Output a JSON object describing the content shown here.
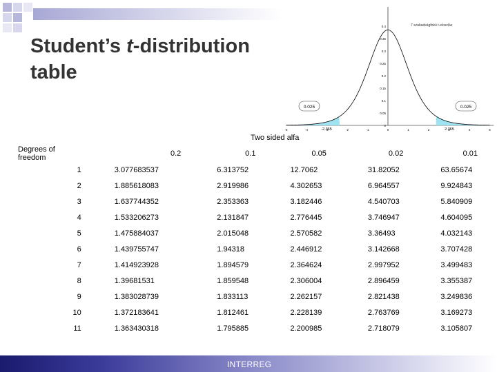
{
  "slide": {
    "title_line1_a": "Student’s ",
    "title_line1_b": "t",
    "title_line1_c": "-distribution",
    "title_line2": "table",
    "footer": "INTERREG"
  },
  "figure": {
    "legend": "7 szabadságfokú t-eloszlás",
    "left_tail_label": "0.025",
    "right_tail_label": "0.025",
    "left_crit": "-2.365",
    "right_crit": "2.365",
    "y_ticks": [
      "0.4",
      "0.35",
      "0.3",
      "0.25",
      "0.2",
      "0.15",
      "0.1",
      "0.05",
      "0"
    ],
    "x_ticks": [
      "-5",
      "-4",
      "-3",
      "-2",
      "-1",
      "0",
      "1",
      "2",
      "3",
      "4",
      "5"
    ],
    "colors": {
      "fill": "#9fe3f0",
      "curve": "#000000",
      "tail_box": "#ffffff"
    }
  },
  "table": {
    "caption": "Two sided alfa",
    "header": [
      "Degrees of freedom",
      "0.2",
      "0.1",
      "0.05",
      "0.02",
      "0.01"
    ],
    "rows": [
      [
        "1",
        "3.077683537",
        "6.313752",
        "12.7062",
        "31.82052",
        "63.65674"
      ],
      [
        "2",
        "1.885618083",
        "2.919986",
        "4.302653",
        "6.964557",
        "9.924843"
      ],
      [
        "3",
        "1.637744352",
        "2.353363",
        "3.182446",
        "4.540703",
        "5.840909"
      ],
      [
        "4",
        "1.533206273",
        "2.131847",
        "2.776445",
        "3.746947",
        "4.604095"
      ],
      [
        "5",
        "1.475884037",
        "2.015048",
        "2.570582",
        "3.36493",
        "4.032143"
      ],
      [
        "6",
        "1.439755747",
        "1.94318",
        "2.446912",
        "3.142668",
        "3.707428"
      ],
      [
        "7",
        "1.414923928",
        "1.894579",
        "2.364624",
        "2.997952",
        "3.499483"
      ],
      [
        "8",
        "1.39681531",
        "1.859548",
        "2.306004",
        "2.896459",
        "3.355387"
      ],
      [
        "9",
        "1.383028739",
        "1.833113",
        "2.262157",
        "2.821438",
        "3.249836"
      ],
      [
        "10",
        "1.372183641",
        "1.812461",
        "2.228139",
        "2.763769",
        "3.169273"
      ],
      [
        "11",
        "1.363430318",
        "1.795885",
        "2.200985",
        "2.718079",
        "3.105807"
      ]
    ]
  }
}
